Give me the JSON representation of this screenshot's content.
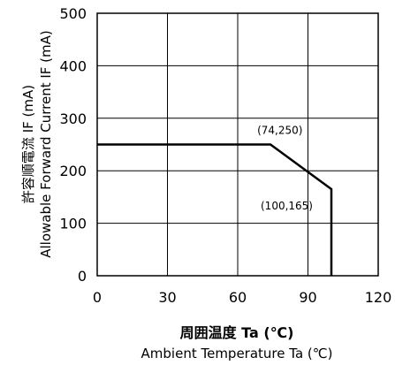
{
  "chart_data": {
    "type": "line",
    "series": [
      {
        "x": [
          0,
          74,
          100,
          100
        ],
        "y": [
          250,
          250,
          165,
          0
        ],
        "color": "#000000"
      }
    ],
    "xlim": [
      0,
      120
    ],
    "ylim": [
      0,
      500
    ],
    "xticks": [
      0,
      30,
      60,
      90,
      120
    ],
    "yticks": [
      0,
      100,
      200,
      300,
      400,
      500
    ],
    "grid": true,
    "ylabel_line1": "許容順電流 IF (mA)",
    "ylabel_line2": "Allowable Forward Current IF (mA)",
    "xlabel_line1": "周囲温度 Ta (℃)",
    "xlabel_line2": "Ambient Temperature Ta (℃)",
    "annotations": [
      {
        "text": "(74,250)",
        "x": 74,
        "y": 250
      },
      {
        "text": "(100,165)",
        "x": 100,
        "y": 165
      }
    ]
  }
}
